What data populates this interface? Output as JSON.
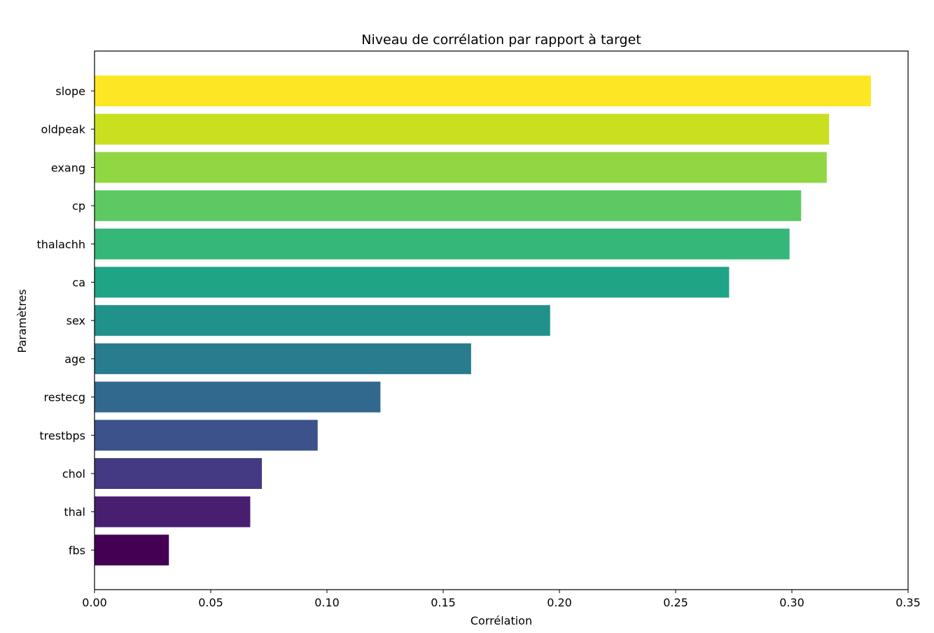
{
  "chart_data": {
    "type": "bar",
    "orientation": "horizontal",
    "title": "Niveau de corrélation par rapport à target",
    "xlabel": "Corrélation",
    "ylabel": "Paramètres",
    "xlim": [
      0,
      0.35
    ],
    "xticks": [
      0.0,
      0.05,
      0.1,
      0.15,
      0.2,
      0.25,
      0.3,
      0.35
    ],
    "xtick_labels": [
      "0.00",
      "0.05",
      "0.10",
      "0.15",
      "0.20",
      "0.25",
      "0.30",
      "0.35"
    ],
    "grid": false,
    "colormap": "viridis",
    "categories": [
      "slope",
      "oldpeak",
      "exang",
      "cp",
      "thalachh",
      "ca",
      "sex",
      "age",
      "restecg",
      "trestbps",
      "chol",
      "thal",
      "fbs"
    ],
    "values": [
      0.334,
      0.316,
      0.315,
      0.304,
      0.299,
      0.273,
      0.196,
      0.162,
      0.123,
      0.096,
      0.072,
      0.067,
      0.032
    ],
    "colors": [
      "#fde725",
      "#c8e020",
      "#90d743",
      "#5ec962",
      "#35b779",
      "#20a486",
      "#21918c",
      "#287c8e",
      "#31688e",
      "#3b528b",
      "#443983",
      "#481f70",
      "#440154"
    ]
  }
}
